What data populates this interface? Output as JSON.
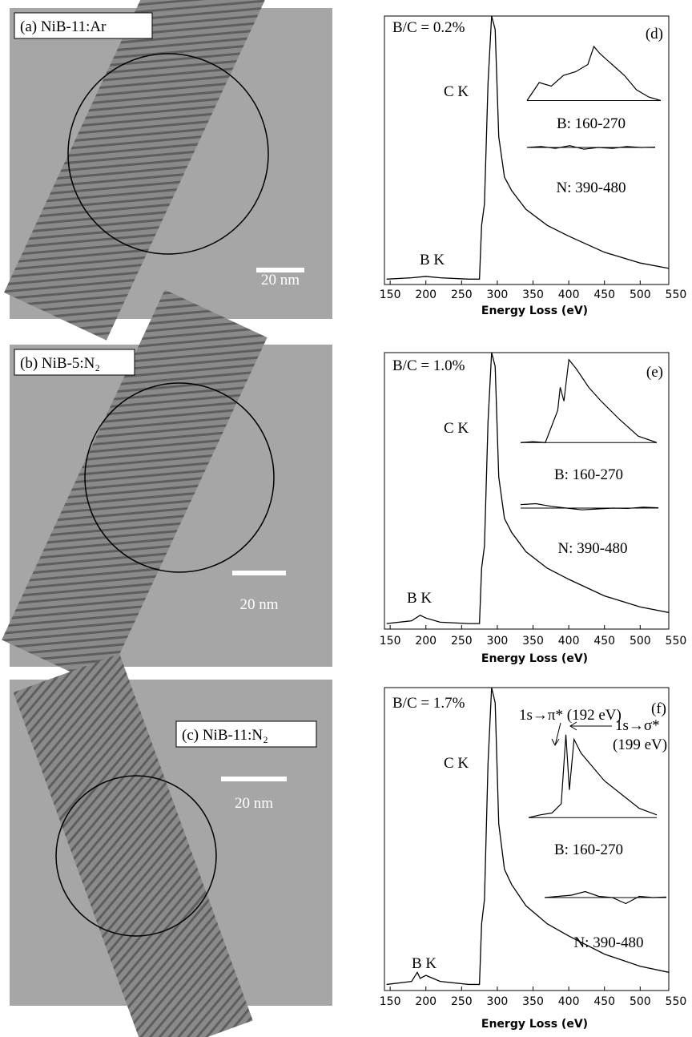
{
  "panels": [
    {
      "label": "(a) NiB-11:Ar",
      "scale_bar": "20 nm"
    },
    {
      "label": "(b) NiB-5:N₂",
      "scale_bar": "20 nm"
    },
    {
      "label": "(c) NiB-11:N₂",
      "scale_bar": "20 nm"
    }
  ],
  "chart_data": [
    {
      "type": "line",
      "xlabel": "Energy Loss (eV)",
      "xlim": [
        142,
        540
      ],
      "xticks": [
        150,
        200,
        250,
        300,
        350,
        400,
        450,
        500,
        550
      ],
      "ylim": [
        0,
        100
      ],
      "annotations": {
        "ratio": "B/C = 0.2%",
        "panel": "(d)",
        "ck": "C K",
        "bk": "B K"
      },
      "x": [
        145,
        180,
        200,
        220,
        260,
        275,
        278,
        282,
        287,
        292,
        297,
        302,
        310,
        320,
        340,
        370,
        400,
        450,
        500,
        540
      ],
      "values": [
        2,
        2.5,
        3,
        2.5,
        2,
        2,
        22,
        30,
        75,
        100,
        95,
        55,
        40,
        35,
        28,
        22,
        18,
        12,
        8,
        6
      ],
      "insets": [
        {
          "name": "B: 160-270",
          "x": [
            160,
            170,
            180,
            190,
            200,
            210,
            215,
            220,
            230,
            240,
            250,
            260,
            270
          ],
          "values": [
            5,
            30,
            25,
            40,
            45,
            55,
            80,
            70,
            55,
            40,
            20,
            10,
            5
          ]
        },
        {
          "name": "N: 390-480",
          "x": [
            390,
            400,
            410,
            420,
            430,
            440,
            450,
            460,
            470,
            480
          ],
          "values": [
            50,
            55,
            45,
            60,
            40,
            50,
            45,
            55,
            50,
            52
          ]
        }
      ]
    },
    {
      "type": "line",
      "xlabel": "Energy Loss (eV)",
      "xlim": [
        142,
        540
      ],
      "xticks": [
        150,
        200,
        250,
        300,
        350,
        400,
        450,
        500,
        550
      ],
      "ylim": [
        0,
        100
      ],
      "annotations": {
        "ratio": "B/C = 1.0%",
        "panel": "(e)",
        "ck": "C K",
        "bk": "B K"
      },
      "x": [
        145,
        180,
        192,
        200,
        220,
        260,
        275,
        278,
        282,
        287,
        292,
        297,
        302,
        310,
        320,
        340,
        370,
        400,
        450,
        500,
        540
      ],
      "values": [
        2,
        3,
        5,
        4,
        2.5,
        2,
        2,
        22,
        30,
        75,
        100,
        95,
        55,
        40,
        35,
        28,
        22,
        18,
        12,
        8,
        6
      ],
      "insets": [
        {
          "name": "B: 160-270",
          "x": [
            160,
            170,
            180,
            190,
            192,
            195,
            199,
            205,
            215,
            225,
            240,
            255,
            270
          ],
          "values": [
            5,
            6,
            5,
            40,
            65,
            50,
            95,
            85,
            65,
            50,
            30,
            12,
            5
          ]
        },
        {
          "name": "N: 390-480",
          "x": [
            390,
            400,
            410,
            420,
            430,
            440,
            450,
            460,
            470,
            480
          ],
          "values": [
            70,
            75,
            60,
            50,
            40,
            45,
            50,
            48,
            55,
            52
          ]
        }
      ]
    },
    {
      "type": "line",
      "xlabel": "Energy Loss (eV)",
      "xlim": [
        142,
        540
      ],
      "xticks": [
        150,
        200,
        250,
        300,
        350,
        400,
        450,
        500,
        550
      ],
      "ylim": [
        0,
        100
      ],
      "annotations": {
        "ratio": "B/C = 1.7%",
        "panel": "(f)",
        "ck": "C K",
        "bk": "B K",
        "pi": "1s→π* (192 eV)",
        "sigma": "1s→σ*",
        "sigma_ev": "(199 eV)"
      },
      "x": [
        145,
        180,
        188,
        192,
        200,
        220,
        260,
        275,
        278,
        282,
        287,
        292,
        297,
        302,
        310,
        320,
        340,
        370,
        400,
        450,
        500,
        540
      ],
      "values": [
        2,
        3,
        6,
        4,
        5,
        3,
        2,
        2,
        22,
        30,
        75,
        100,
        95,
        55,
        40,
        35,
        28,
        22,
        18,
        12,
        8,
        6
      ],
      "insets": [
        {
          "name": "B: 160-270",
          "x": [
            160,
            170,
            180,
            188,
            192,
            195,
            199,
            205,
            215,
            225,
            240,
            255,
            270
          ],
          "values": [
            5,
            8,
            10,
            20,
            95,
            35,
            90,
            75,
            60,
            45,
            30,
            15,
            8
          ]
        },
        {
          "name": "N: 390-480",
          "x": [
            390,
            400,
            410,
            420,
            430,
            440,
            450,
            460,
            470,
            480
          ],
          "values": [
            50,
            55,
            60,
            75,
            55,
            50,
            25,
            55,
            50,
            52
          ]
        }
      ]
    }
  ]
}
